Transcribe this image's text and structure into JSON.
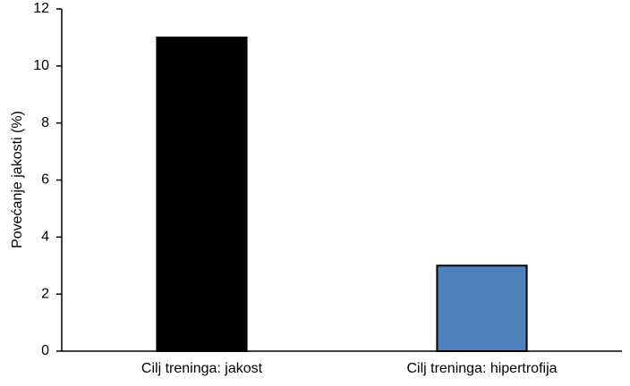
{
  "chart_data": {
    "type": "bar",
    "y_label": "Povećanje jakosti (%)",
    "categories": [
      "Cilj treninga: jakost",
      "Cilj treninga: hipertrofija"
    ],
    "values": [
      11,
      3
    ],
    "colors": [
      "#000000",
      "#4f81bd"
    ],
    "ylim": [
      0,
      12
    ],
    "yticks": [
      0,
      2,
      4,
      6,
      8,
      10,
      12
    ],
    "grid": false
  }
}
